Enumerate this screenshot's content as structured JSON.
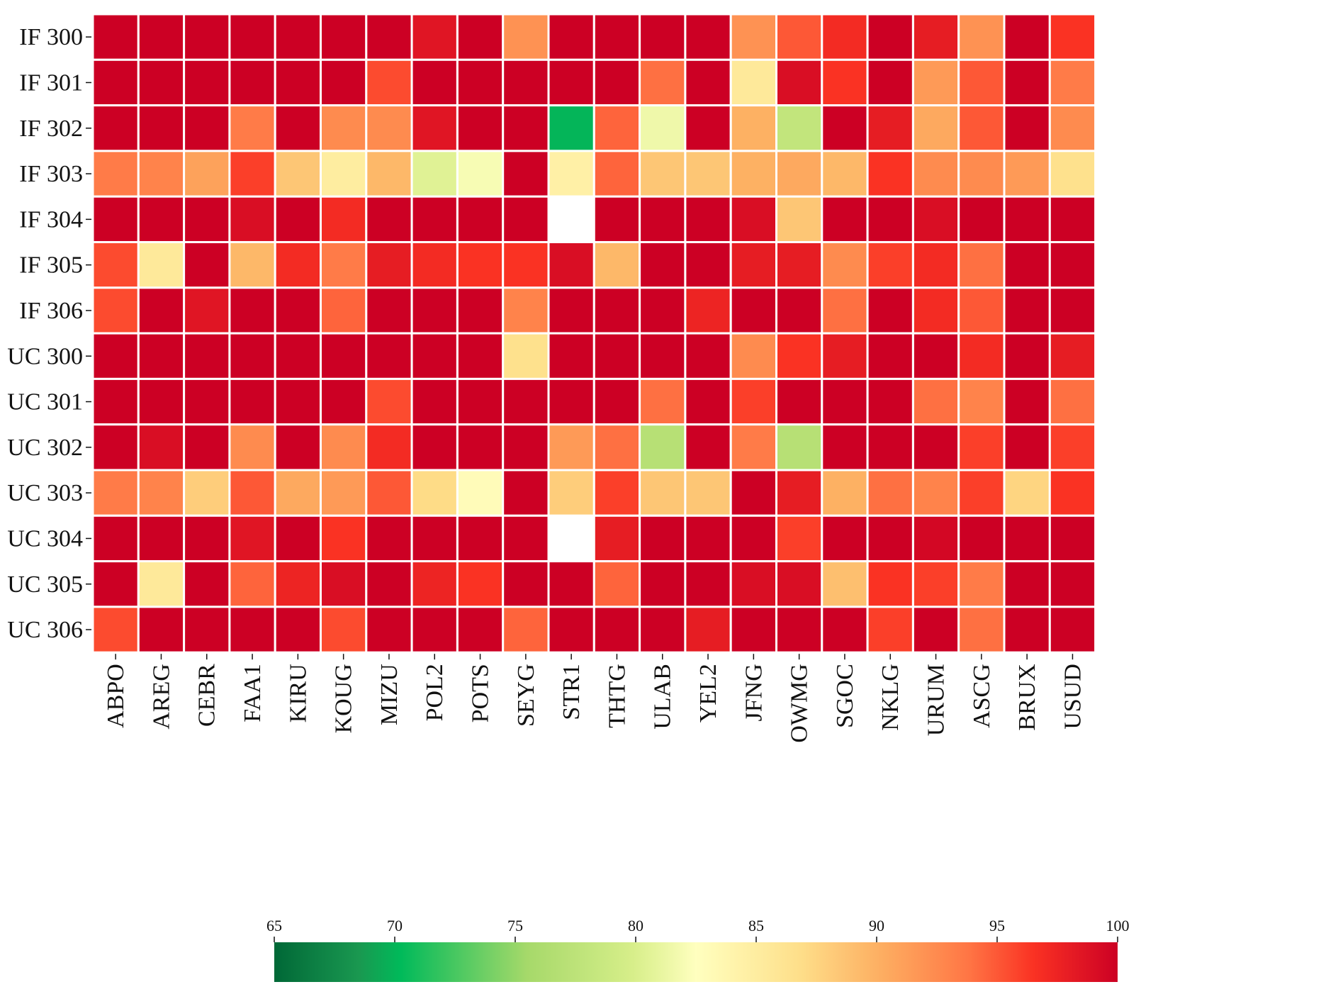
{
  "chart_data": {
    "type": "heatmap",
    "rows": [
      "IF 300",
      "IF 301",
      "IF 302",
      "IF 303",
      "IF 304",
      "IF 305",
      "IF 306",
      "UC 300",
      "UC 301",
      "UC 302",
      "UC 303",
      "UC 304",
      "UC 305",
      "UC 306"
    ],
    "columns": [
      "ABPO",
      "AREG",
      "CEBR",
      "FAA1",
      "KIRU",
      "KOUG",
      "MIZU",
      "POL2",
      "POTS",
      "SEYG",
      "STR1",
      "THTG",
      "ULAB",
      "YEL2",
      "JFNG",
      "OWMG",
      "SGOC",
      "NKLG",
      "URUM",
      "ASCG",
      "BRUX",
      "USUD"
    ],
    "values": [
      [
        100,
        100,
        100,
        100,
        100,
        100,
        100,
        98.5,
        100,
        92,
        100,
        100,
        100,
        100,
        92,
        95,
        97,
        100,
        98,
        92,
        100,
        96.5
      ],
      [
        100,
        100,
        100,
        100,
        100,
        100,
        95.5,
        100,
        100,
        100,
        100,
        100,
        94,
        100,
        85.5,
        99,
        96.5,
        100,
        91.5,
        95,
        100,
        93.5
      ],
      [
        100,
        100,
        100,
        93.5,
        100,
        92.5,
        92.5,
        98.5,
        100,
        100,
        70,
        94.5,
        81.5,
        100,
        90,
        78,
        100,
        98,
        90.5,
        95,
        100,
        92.5
      ],
      [
        93.5,
        93,
        91,
        96,
        88.5,
        85,
        89.5,
        80.5,
        82,
        100,
        84.5,
        94.5,
        88.5,
        88.5,
        90,
        90.5,
        89.5,
        96.5,
        92.5,
        92.5,
        91.5,
        86.5
      ],
      [
        100,
        100,
        100,
        99,
        100,
        97,
        100,
        100,
        100,
        100,
        null,
        100,
        100,
        100,
        99,
        88.5,
        100,
        100,
        99,
        100,
        100,
        100
      ],
      [
        95.5,
        85.5,
        100,
        89.5,
        97,
        93.5,
        98,
        97,
        96.5,
        96.5,
        99,
        89.5,
        100,
        100,
        98,
        98,
        92.5,
        96,
        97,
        94,
        100,
        100
      ],
      [
        95.5,
        100,
        98.5,
        100,
        100,
        94.5,
        100,
        100,
        100,
        93,
        100,
        100,
        100,
        97.5,
        100,
        100,
        94,
        100,
        97,
        95,
        100,
        100
      ],
      [
        100,
        100,
        100,
        100,
        100,
        100,
        100,
        100,
        100,
        86.5,
        100,
        100,
        100,
        100,
        92.5,
        96.5,
        98,
        100,
        100,
        97,
        100,
        98
      ],
      [
        100,
        100,
        100,
        100,
        100,
        100,
        95.5,
        100,
        100,
        100,
        100,
        100,
        94,
        100,
        96,
        100,
        100,
        100,
        94,
        93,
        100,
        94
      ],
      [
        100,
        99,
        100,
        92.5,
        100,
        92.5,
        97,
        100,
        100,
        100,
        91.5,
        94,
        77,
        100,
        93.5,
        77,
        100,
        100,
        100,
        96,
        100,
        96
      ],
      [
        93.5,
        93,
        88,
        95,
        90.5,
        91.5,
        95,
        87,
        83,
        100,
        88,
        96,
        88.5,
        88.5,
        100,
        98,
        90,
        94,
        93,
        96,
        87.5,
        96.5
      ],
      [
        100,
        100,
        100,
        98.5,
        100,
        96.5,
        100,
        100,
        100,
        100,
        null,
        98,
        100,
        100,
        100,
        96,
        100,
        100,
        99.5,
        100,
        100,
        100
      ],
      [
        100,
        85.5,
        100,
        94.5,
        97.5,
        99,
        100,
        97.5,
        96.5,
        100,
        100,
        94.5,
        100,
        100,
        99,
        99,
        89,
        96.5,
        96,
        93.5,
        100,
        100
      ],
      [
        95.5,
        100,
        100,
        100,
        100,
        95.5,
        100,
        100,
        100,
        94.5,
        100,
        100,
        100,
        98,
        100,
        100,
        100,
        96,
        100,
        94,
        100,
        100
      ]
    ],
    "colorbar": {
      "min": 65,
      "max": 100,
      "ticks": [
        65,
        70,
        75,
        80,
        85,
        90,
        95,
        100
      ],
      "tick_labels": [
        "65",
        "70",
        "75",
        "80",
        "85",
        "90",
        "95",
        "100"
      ],
      "colormap": "RdYlGn",
      "orientation": "horizontal",
      "placement": "bottom"
    },
    "missing_color": "#ffffff",
    "grid_line_color": "#ffffff",
    "title": "",
    "xlabel": "",
    "ylabel": ""
  }
}
